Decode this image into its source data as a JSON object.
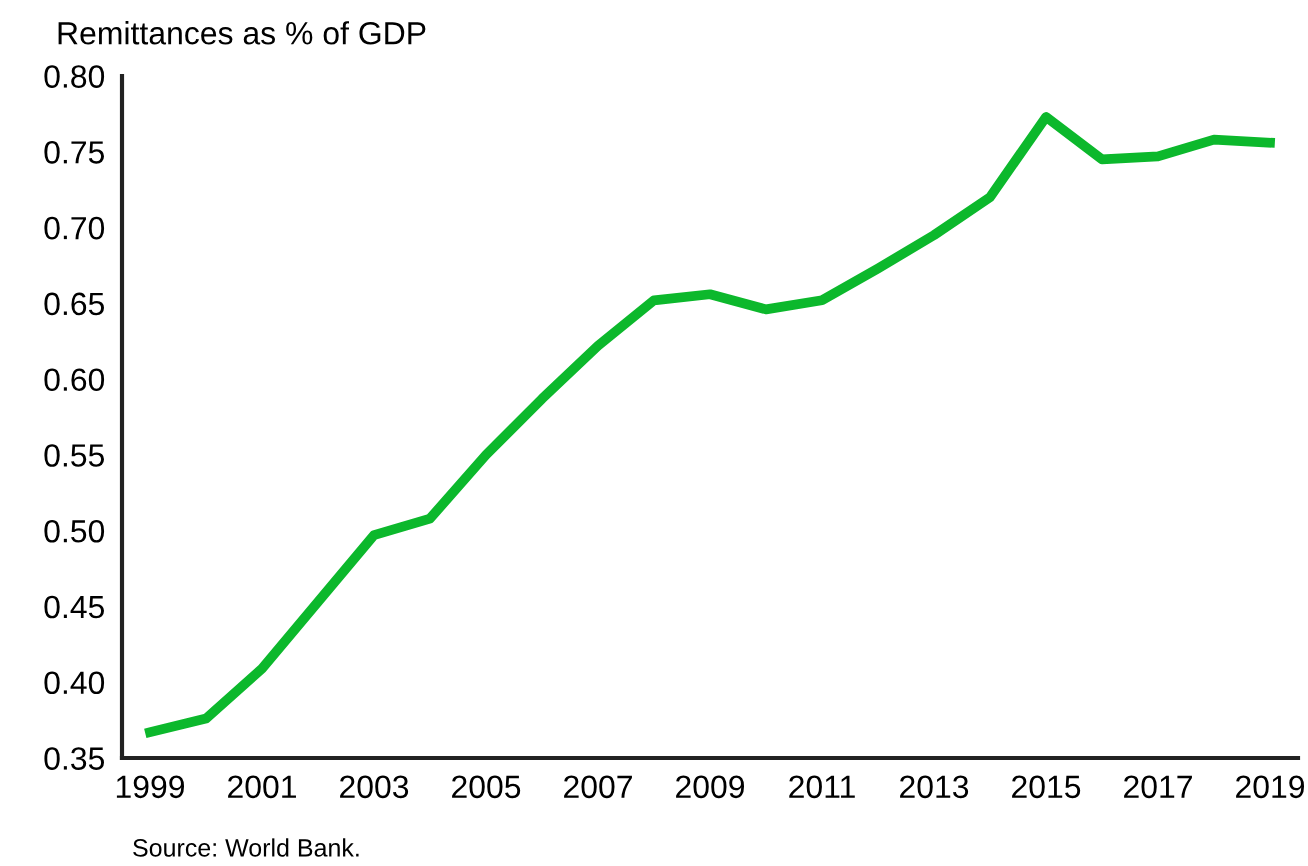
{
  "chart_data": {
    "type": "line",
    "title": "Remittances as % of GDP",
    "annotations": [
      "Source: World Bank."
    ],
    "x": [
      1999,
      2000,
      2001,
      2002,
      2003,
      2004,
      2005,
      2006,
      2007,
      2008,
      2009,
      2010,
      2011,
      2012,
      2013,
      2014,
      2015,
      2016,
      2017,
      2018,
      2019
    ],
    "series": [
      {
        "color": "#0cb82c",
        "values": [
          0.367,
          0.376,
          0.409,
          0.453,
          0.497,
          0.508,
          0.55,
          0.587,
          0.622,
          0.652,
          0.656,
          0.646,
          0.652,
          0.673,
          0.695,
          0.72,
          0.773,
          0.745,
          0.747,
          0.758,
          0.756
        ]
      }
    ],
    "xlim": [
      1998.5,
      2019.5
    ],
    "xticks": [
      1999,
      2001,
      2003,
      2005,
      2007,
      2009,
      2011,
      2013,
      2015,
      2017,
      2019
    ],
    "ylim": [
      0.35,
      0.8
    ],
    "yticks": [
      {
        "value": 0.35,
        "label": "0.35"
      },
      {
        "value": 0.4,
        "label": "0.40"
      },
      {
        "value": 0.45,
        "label": "0.45"
      },
      {
        "value": 0.5,
        "label": "0.50"
      },
      {
        "value": 0.55,
        "label": "0.55"
      },
      {
        "value": 0.6,
        "label": "0.60"
      },
      {
        "value": 0.65,
        "label": "0.65"
      },
      {
        "value": 0.7,
        "label": "0.70"
      },
      {
        "value": 0.75,
        "label": "0.75"
      },
      {
        "value": 0.8,
        "label": "0.80"
      }
    ],
    "grid": false,
    "marker": "none",
    "line_style": "solid"
  }
}
